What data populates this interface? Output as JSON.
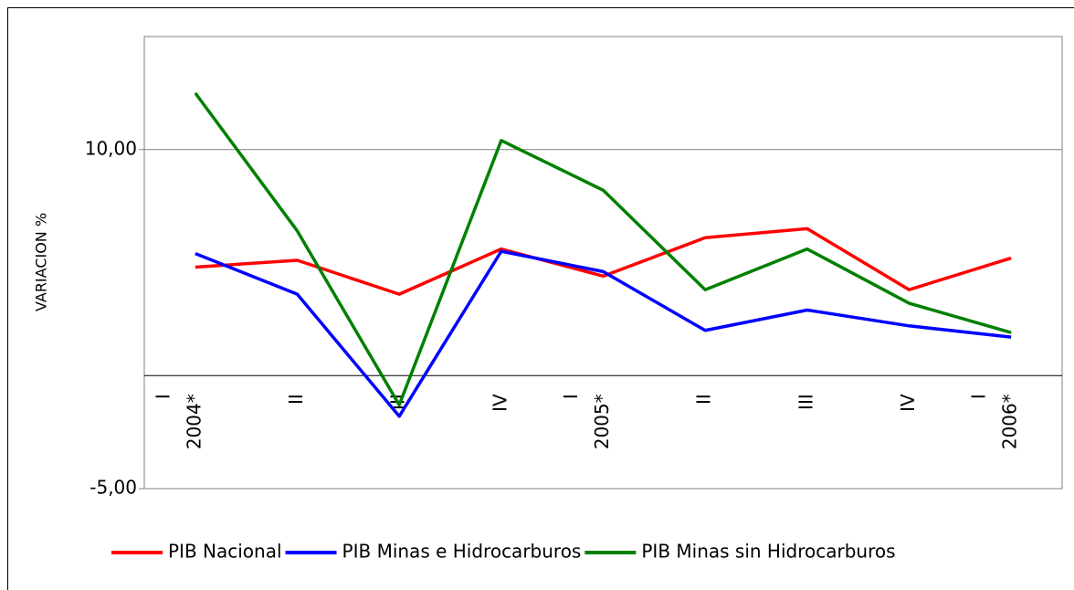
{
  "chart_data": {
    "type": "line",
    "ylabel": "VARIACION %",
    "categories": [
      [
        "I",
        "2004*"
      ],
      [
        "II"
      ],
      [
        "III"
      ],
      [
        "IV"
      ],
      [
        "I",
        "2005*"
      ],
      [
        "II"
      ],
      [
        "III"
      ],
      [
        "IV"
      ],
      [
        "I",
        "2006*"
      ]
    ],
    "series": [
      {
        "name": "PIB Nacional",
        "color": "#ff0000",
        "values": [
          4.8,
          5.1,
          3.6,
          5.6,
          4.4,
          6.1,
          6.5,
          3.8,
          5.2
        ]
      },
      {
        "name": "PIB Minas e Hidrocarburos",
        "color": "#0000ff",
        "values": [
          5.4,
          3.6,
          -1.8,
          5.5,
          4.6,
          2.0,
          2.9,
          2.2,
          1.7
        ]
      },
      {
        "name": "PIB Minas sin Hidrocarburos",
        "color": "#008000",
        "values": [
          12.5,
          6.4,
          -1.3,
          10.4,
          8.2,
          3.8,
          5.6,
          3.2,
          1.9
        ]
      }
    ],
    "ylim": [
      -5,
      15
    ],
    "yticks": [
      {
        "value": -5,
        "label": "-5,00"
      },
      {
        "value": 10,
        "label": "10,00"
      }
    ],
    "grid": true,
    "legend": "bottom"
  }
}
